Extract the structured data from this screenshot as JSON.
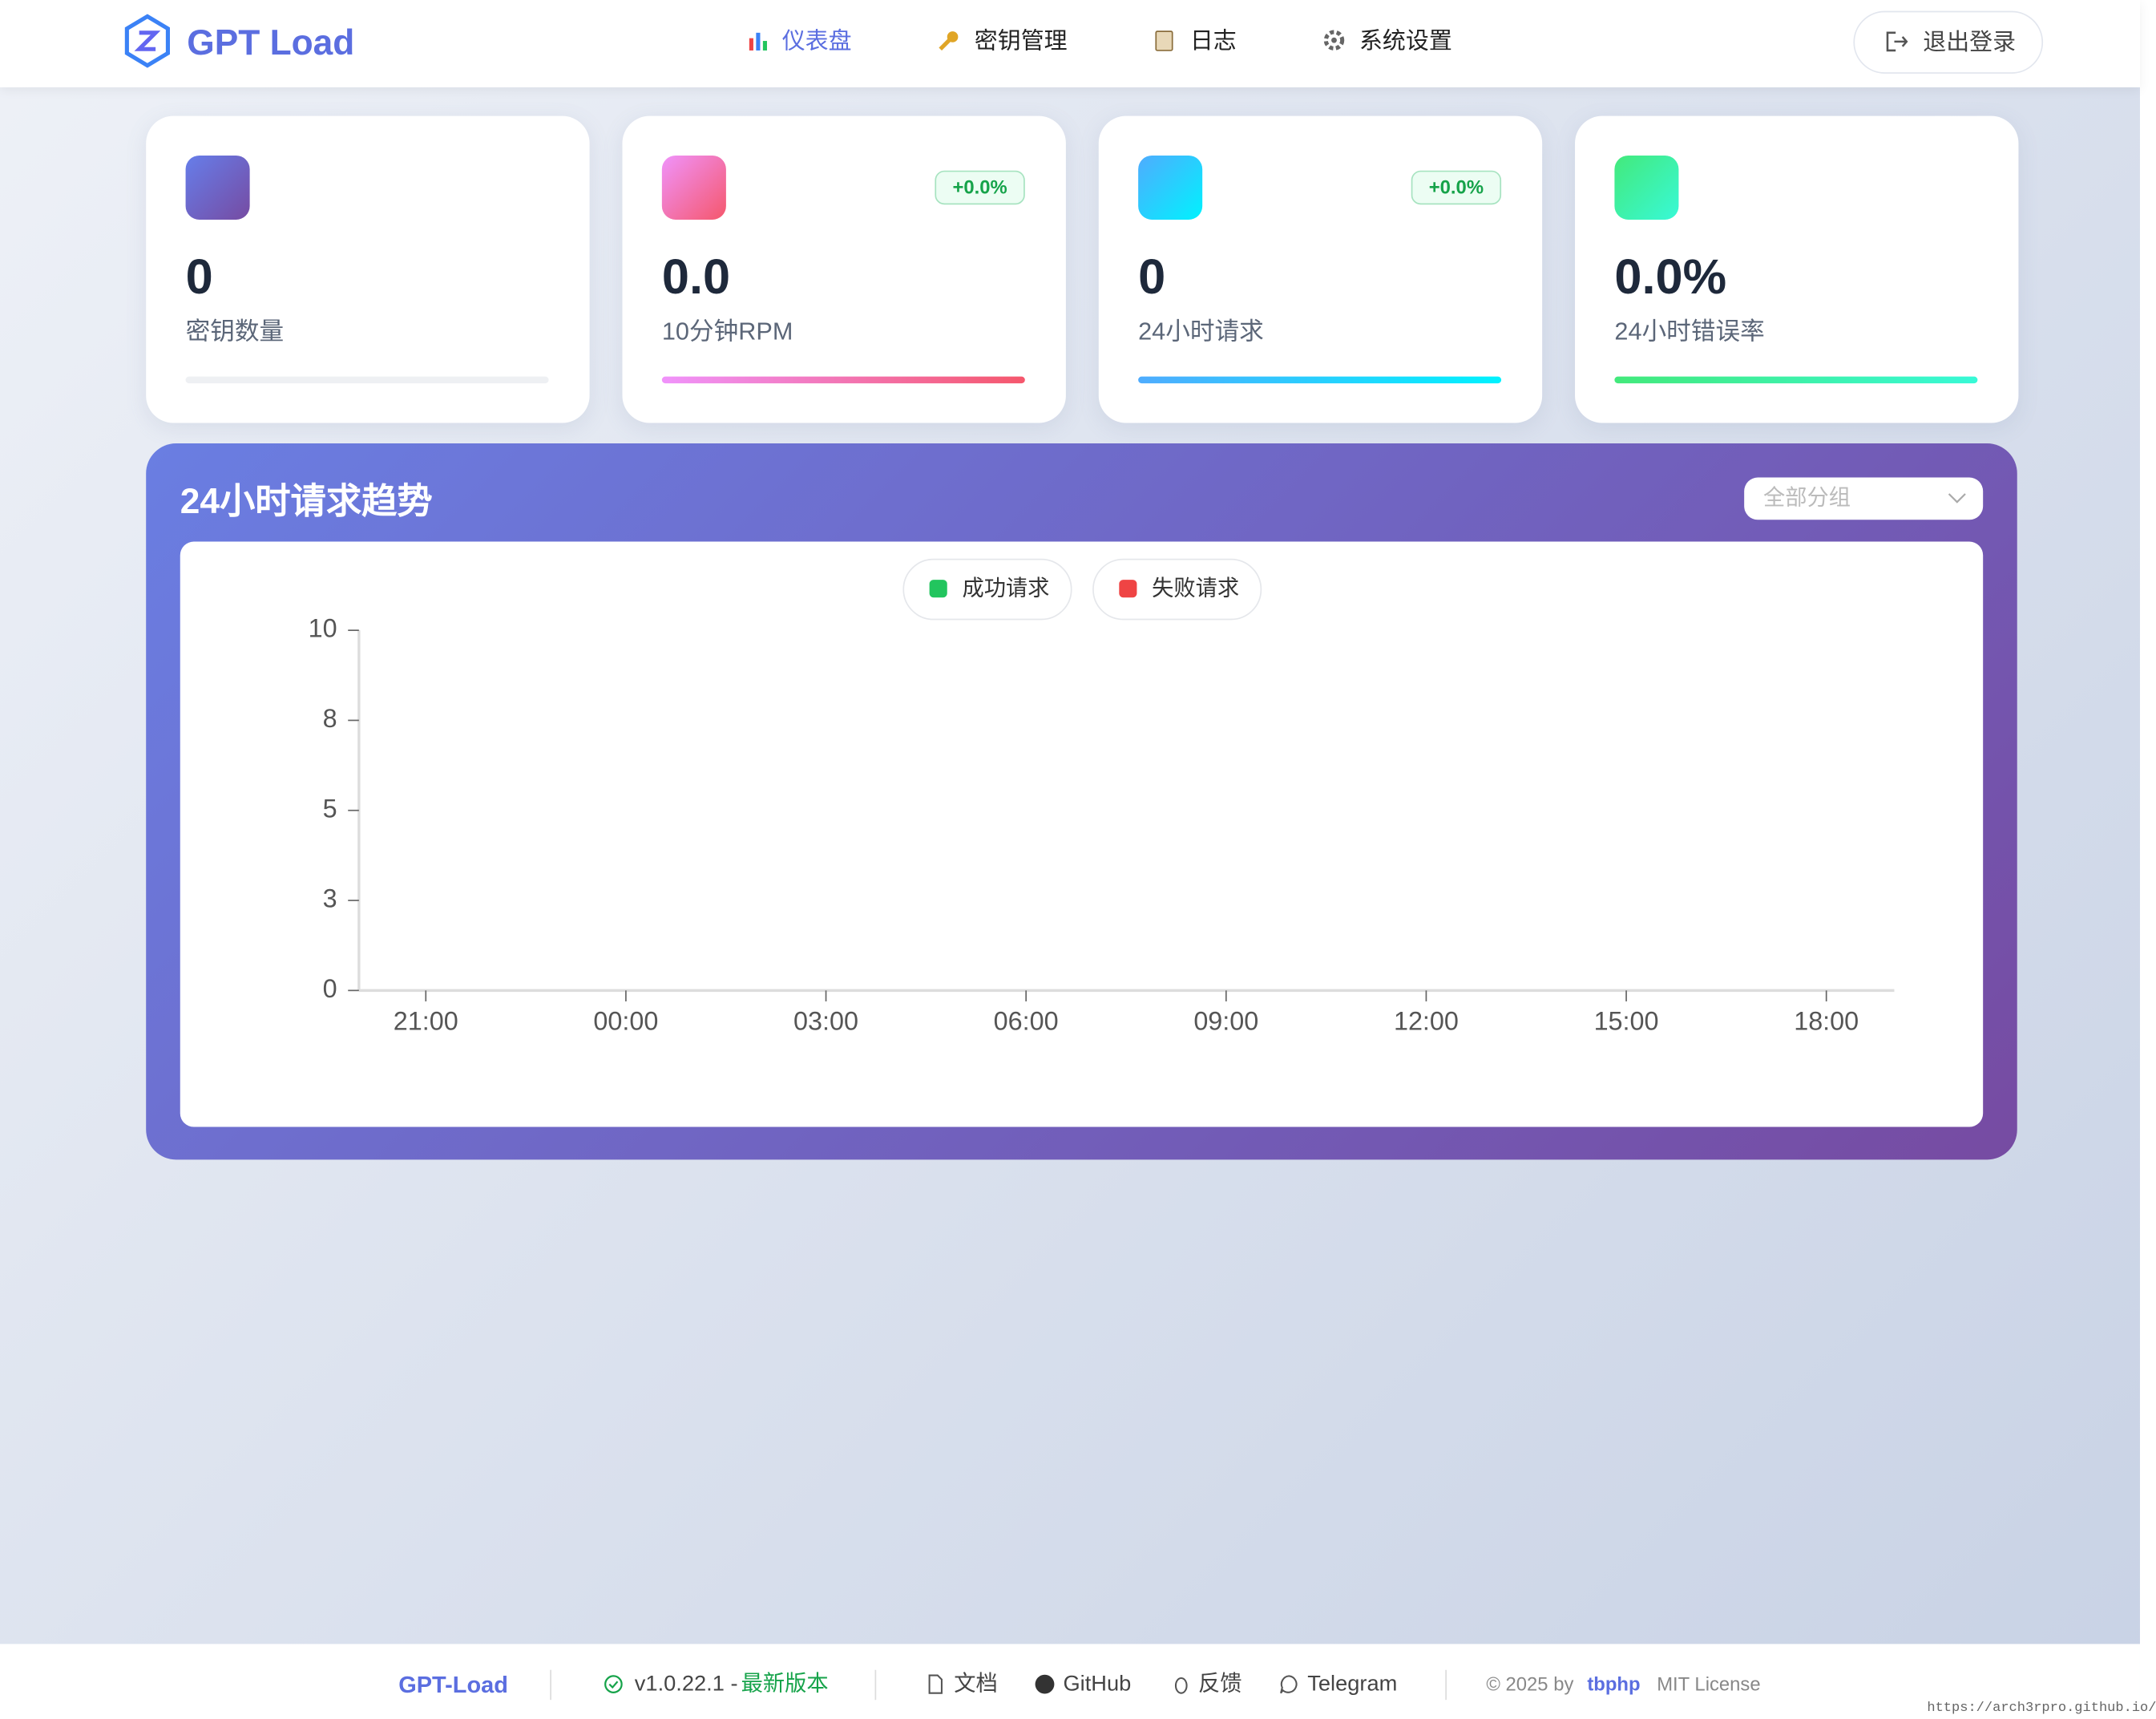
{
  "header": {
    "logo": "GPT Load",
    "nav": [
      "仪表盘",
      "密钥管理",
      "日志",
      "系统设置"
    ],
    "logout": "退出登录"
  },
  "stats": [
    {
      "value": "0",
      "label": "密钥数量"
    },
    {
      "value": "0.0",
      "label": "10分钟RPM",
      "badge": "+0.0%"
    },
    {
      "value": "0",
      "label": "24小时请求",
      "badge": "+0.0%"
    },
    {
      "value": "0.0%",
      "label": "24小时错误率"
    }
  ],
  "panel": {
    "title": "24小时请求趋势",
    "select": "全部分组"
  },
  "chart_data": {
    "type": "line",
    "categories": [
      "21:00",
      "00:00",
      "03:00",
      "06:00",
      "09:00",
      "12:00",
      "15:00",
      "18:00"
    ],
    "series": [
      {
        "name": "成功请求",
        "color": "#22c55e",
        "values": [
          null,
          null,
          null,
          null,
          null,
          null,
          null,
          null
        ]
      },
      {
        "name": "失败请求",
        "color": "#ef4444",
        "values": [
          null,
          null,
          null,
          null,
          null,
          null,
          null,
          null
        ]
      }
    ],
    "ylim": [
      0,
      10
    ],
    "yticks": [
      0,
      {
        "value": 2.5,
        "label": "3"
      },
      5,
      {
        "value": 7.5,
        "label": "8"
      },
      10
    ]
  },
  "footer": {
    "brand": "GPT-Load",
    "version": "v1.0.22.1 -",
    "status": "最新版本",
    "links": [
      "文档",
      "GitHub",
      "反馈",
      "Telegram"
    ],
    "copyright": "© 2025 by",
    "author": "tbphp",
    "license": "MIT License"
  },
  "watermark": "https://arch3rpro.github.io/"
}
